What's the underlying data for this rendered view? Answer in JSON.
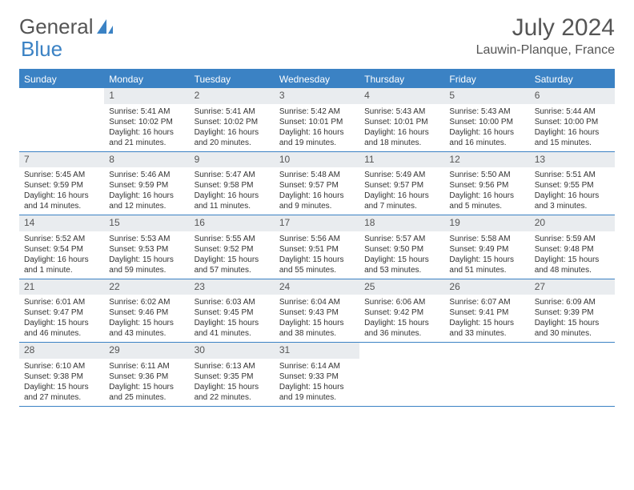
{
  "brand": {
    "part1": "General",
    "part2": "Blue"
  },
  "title": "July 2024",
  "location": "Lauwin-Planque, France",
  "colors": {
    "accent": "#3b82c4",
    "header_bg": "#e9ecef",
    "text": "#333333",
    "muted": "#555555",
    "background": "#ffffff"
  },
  "weekdays": [
    "Sunday",
    "Monday",
    "Tuesday",
    "Wednesday",
    "Thursday",
    "Friday",
    "Saturday"
  ],
  "weeks": [
    [
      null,
      {
        "n": "1",
        "sunrise": "5:41 AM",
        "sunset": "10:02 PM",
        "daylight": "16 hours and 21 minutes."
      },
      {
        "n": "2",
        "sunrise": "5:41 AM",
        "sunset": "10:02 PM",
        "daylight": "16 hours and 20 minutes."
      },
      {
        "n": "3",
        "sunrise": "5:42 AM",
        "sunset": "10:01 PM",
        "daylight": "16 hours and 19 minutes."
      },
      {
        "n": "4",
        "sunrise": "5:43 AM",
        "sunset": "10:01 PM",
        "daylight": "16 hours and 18 minutes."
      },
      {
        "n": "5",
        "sunrise": "5:43 AM",
        "sunset": "10:00 PM",
        "daylight": "16 hours and 16 minutes."
      },
      {
        "n": "6",
        "sunrise": "5:44 AM",
        "sunset": "10:00 PM",
        "daylight": "16 hours and 15 minutes."
      }
    ],
    [
      {
        "n": "7",
        "sunrise": "5:45 AM",
        "sunset": "9:59 PM",
        "daylight": "16 hours and 14 minutes."
      },
      {
        "n": "8",
        "sunrise": "5:46 AM",
        "sunset": "9:59 PM",
        "daylight": "16 hours and 12 minutes."
      },
      {
        "n": "9",
        "sunrise": "5:47 AM",
        "sunset": "9:58 PM",
        "daylight": "16 hours and 11 minutes."
      },
      {
        "n": "10",
        "sunrise": "5:48 AM",
        "sunset": "9:57 PM",
        "daylight": "16 hours and 9 minutes."
      },
      {
        "n": "11",
        "sunrise": "5:49 AM",
        "sunset": "9:57 PM",
        "daylight": "16 hours and 7 minutes."
      },
      {
        "n": "12",
        "sunrise": "5:50 AM",
        "sunset": "9:56 PM",
        "daylight": "16 hours and 5 minutes."
      },
      {
        "n": "13",
        "sunrise": "5:51 AM",
        "sunset": "9:55 PM",
        "daylight": "16 hours and 3 minutes."
      }
    ],
    [
      {
        "n": "14",
        "sunrise": "5:52 AM",
        "sunset": "9:54 PM",
        "daylight": "16 hours and 1 minute."
      },
      {
        "n": "15",
        "sunrise": "5:53 AM",
        "sunset": "9:53 PM",
        "daylight": "15 hours and 59 minutes."
      },
      {
        "n": "16",
        "sunrise": "5:55 AM",
        "sunset": "9:52 PM",
        "daylight": "15 hours and 57 minutes."
      },
      {
        "n": "17",
        "sunrise": "5:56 AM",
        "sunset": "9:51 PM",
        "daylight": "15 hours and 55 minutes."
      },
      {
        "n": "18",
        "sunrise": "5:57 AM",
        "sunset": "9:50 PM",
        "daylight": "15 hours and 53 minutes."
      },
      {
        "n": "19",
        "sunrise": "5:58 AM",
        "sunset": "9:49 PM",
        "daylight": "15 hours and 51 minutes."
      },
      {
        "n": "20",
        "sunrise": "5:59 AM",
        "sunset": "9:48 PM",
        "daylight": "15 hours and 48 minutes."
      }
    ],
    [
      {
        "n": "21",
        "sunrise": "6:01 AM",
        "sunset": "9:47 PM",
        "daylight": "15 hours and 46 minutes."
      },
      {
        "n": "22",
        "sunrise": "6:02 AM",
        "sunset": "9:46 PM",
        "daylight": "15 hours and 43 minutes."
      },
      {
        "n": "23",
        "sunrise": "6:03 AM",
        "sunset": "9:45 PM",
        "daylight": "15 hours and 41 minutes."
      },
      {
        "n": "24",
        "sunrise": "6:04 AM",
        "sunset": "9:43 PM",
        "daylight": "15 hours and 38 minutes."
      },
      {
        "n": "25",
        "sunrise": "6:06 AM",
        "sunset": "9:42 PM",
        "daylight": "15 hours and 36 minutes."
      },
      {
        "n": "26",
        "sunrise": "6:07 AM",
        "sunset": "9:41 PM",
        "daylight": "15 hours and 33 minutes."
      },
      {
        "n": "27",
        "sunrise": "6:09 AM",
        "sunset": "9:39 PM",
        "daylight": "15 hours and 30 minutes."
      }
    ],
    [
      {
        "n": "28",
        "sunrise": "6:10 AM",
        "sunset": "9:38 PM",
        "daylight": "15 hours and 27 minutes."
      },
      {
        "n": "29",
        "sunrise": "6:11 AM",
        "sunset": "9:36 PM",
        "daylight": "15 hours and 25 minutes."
      },
      {
        "n": "30",
        "sunrise": "6:13 AM",
        "sunset": "9:35 PM",
        "daylight": "15 hours and 22 minutes."
      },
      {
        "n": "31",
        "sunrise": "6:14 AM",
        "sunset": "9:33 PM",
        "daylight": "15 hours and 19 minutes."
      },
      null,
      null,
      null
    ]
  ],
  "labels": {
    "sunrise": "Sunrise:",
    "sunset": "Sunset:",
    "daylight": "Daylight:"
  }
}
